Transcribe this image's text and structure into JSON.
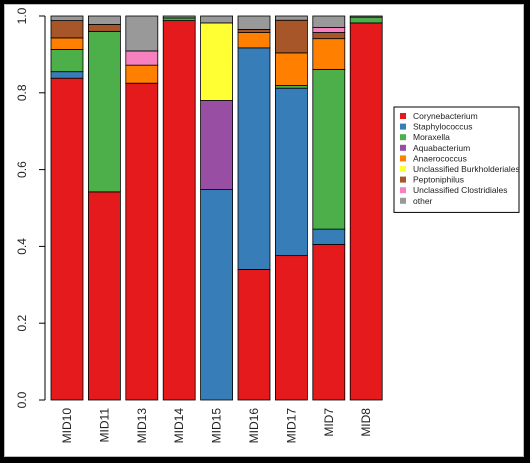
{
  "chart_data": {
    "type": "bar",
    "stacked": true,
    "title": "",
    "xlabel": "",
    "ylabel": "",
    "ylim": [
      0,
      1
    ],
    "yticks": [
      "0.0",
      "0.2",
      "0.4",
      "0.6",
      "0.8",
      "1.0"
    ],
    "grid": false,
    "legend_position": "right",
    "categories": [
      "MID10",
      "MID11",
      "MID13",
      "MID14",
      "MID15",
      "MID16",
      "MID17",
      "MID7",
      "MID8"
    ],
    "series": [
      {
        "name": "Corynebacterium",
        "color": "#e41a1c",
        "values": [
          0.838,
          0.542,
          0.825,
          0.988,
          0.0,
          0.34,
          0.376,
          0.405,
          0.982
        ]
      },
      {
        "name": "Staphylococcus",
        "color": "#377eb8",
        "values": [
          0.017,
          0.0,
          0.0,
          0.0,
          0.548,
          0.577,
          0.436,
          0.04,
          0.0
        ]
      },
      {
        "name": "Moraxella",
        "color": "#4daf4a",
        "values": [
          0.058,
          0.418,
          0.0,
          0.007,
          0.0,
          0.0,
          0.007,
          0.416,
          0.015
        ]
      },
      {
        "name": "Aquabacterium",
        "color": "#984ea3",
        "values": [
          0.0,
          0.0,
          0.0,
          0.0,
          0.232,
          0.0,
          0.0,
          0.0,
          0.0
        ]
      },
      {
        "name": "Anaerococcus",
        "color": "#ff7f00",
        "values": [
          0.03,
          0.0,
          0.047,
          0.0,
          0.0,
          0.04,
          0.085,
          0.08,
          0.0
        ]
      },
      {
        "name": "Unclassified Burkholderiales",
        "color": "#ffff33",
        "values": [
          0.0,
          0.0,
          0.0,
          0.0,
          0.202,
          0.0,
          0.0,
          0.0,
          0.0
        ]
      },
      {
        "name": "Peptoniphilus",
        "color": "#a65628",
        "values": [
          0.045,
          0.018,
          0.0,
          0.0,
          0.0,
          0.008,
          0.085,
          0.016,
          0.0
        ]
      },
      {
        "name": "Unclassified Clostridiales",
        "color": "#f781bf",
        "values": [
          0.0,
          0.0,
          0.037,
          0.0,
          0.0,
          0.0,
          0.0,
          0.013,
          0.0
        ]
      },
      {
        "name": "other",
        "color": "#999999",
        "values": [
          0.012,
          0.022,
          0.091,
          0.005,
          0.018,
          0.035,
          0.011,
          0.03,
          0.003
        ]
      }
    ]
  }
}
